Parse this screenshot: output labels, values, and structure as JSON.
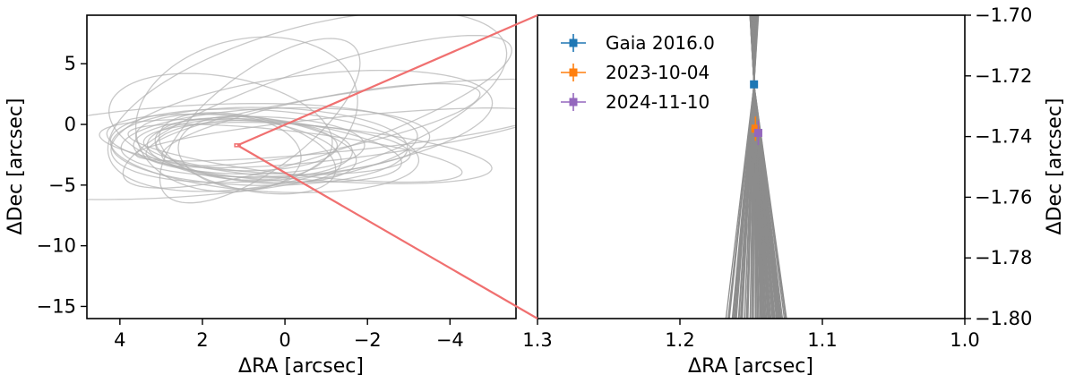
{
  "chart_data": [
    {
      "type": "line",
      "panel": "left",
      "xlabel": "ΔRA [arcsec]",
      "ylabel": "ΔDec [arcsec]",
      "xlim": [
        4.8,
        -5.6
      ],
      "ylim": [
        -16,
        9
      ],
      "xticks": [
        4,
        2,
        0,
        -2,
        -4
      ],
      "yticks": [
        5,
        0,
        -5,
        -10,
        -15
      ],
      "grid": false,
      "orbit_color": "#b0b0b0",
      "orbit_center": [
        1.15,
        -1.72
      ],
      "orbits": [
        {
          "theta_deg": 160,
          "a": 6.0,
          "e": 0.25,
          "inc_scale": 0.62
        },
        {
          "theta_deg": 20,
          "a": 5.0,
          "e": 0.3,
          "inc_scale": 0.45
        },
        {
          "theta_deg": 35,
          "a": 4.0,
          "e": 0.2,
          "inc_scale": 0.8
        },
        {
          "theta_deg": 10,
          "a": 3.6,
          "e": 0.15,
          "inc_scale": 0.9
        },
        {
          "theta_deg": -30,
          "a": 6.0,
          "e": 0.6,
          "inc_scale": 0.5
        },
        {
          "theta_deg": -55,
          "a": 7.5,
          "e": 0.45,
          "inc_scale": 0.35
        },
        {
          "theta_deg": -65,
          "a": 8.0,
          "e": 0.5,
          "inc_scale": 0.55
        },
        {
          "theta_deg": -45,
          "a": 5.5,
          "e": 0.4,
          "inc_scale": 0.7
        },
        {
          "theta_deg": -75,
          "a": 7.0,
          "e": 0.3,
          "inc_scale": 0.25
        },
        {
          "theta_deg": -105,
          "a": 4.5,
          "e": 0.35,
          "inc_scale": 0.6
        },
        {
          "theta_deg": 50,
          "a": 3.2,
          "e": 0.1,
          "inc_scale": 0.7
        },
        {
          "theta_deg": 70,
          "a": 3.5,
          "e": 0.2,
          "inc_scale": 0.55
        },
        {
          "theta_deg": 0,
          "a": 2.8,
          "e": 0.1,
          "inc_scale": 0.85
        },
        {
          "theta_deg": 25,
          "a": 4.4,
          "e": 0.35,
          "inc_scale": 0.4
        },
        {
          "theta_deg": -15,
          "a": 3.8,
          "e": 0.25,
          "inc_scale": 0.75
        },
        {
          "theta_deg": 40,
          "a": 2.6,
          "e": 0.15,
          "inc_scale": 0.9
        },
        {
          "theta_deg": 85,
          "a": 3.0,
          "e": 0.2,
          "inc_scale": 0.5
        },
        {
          "theta_deg": 15,
          "a": 3.3,
          "e": 0.3,
          "inc_scale": 0.65
        },
        {
          "theta_deg": -40,
          "a": 4.8,
          "e": 0.55,
          "inc_scale": 0.45
        },
        {
          "theta_deg": 5,
          "a": 2.2,
          "e": 0.1,
          "inc_scale": 0.95
        },
        {
          "theta_deg": 30,
          "a": 3.9,
          "e": 0.12,
          "inc_scale": 0.6
        },
        {
          "theta_deg": -20,
          "a": 5.2,
          "e": 0.5,
          "inc_scale": 0.3
        },
        {
          "theta_deg": 60,
          "a": 2.9,
          "e": 0.18,
          "inc_scale": 0.7
        },
        {
          "theta_deg": -85,
          "a": 6.4,
          "e": 0.4,
          "inc_scale": 0.45
        }
      ]
    },
    {
      "type": "scatter",
      "panel": "right",
      "xlabel": "ΔRA [arcsec]",
      "ylabel": "ΔDec [arcsec]",
      "xlim": [
        1.3,
        1.0
      ],
      "ylim": [
        -1.8,
        -1.7
      ],
      "xticks": [
        "1.3",
        "1.2",
        "1.1",
        "1.0"
      ],
      "yticks": [
        "−1.70",
        "−1.72",
        "−1.74",
        "−1.76",
        "−1.78",
        "−1.80"
      ],
      "grid": false,
      "legend_position": "top-left",
      "line_color": "#8c8c8c",
      "pinch_point": [
        1.148,
        -1.7228
      ],
      "series": [
        {
          "name": "Gaia 2016.0",
          "color": "#1f77b4",
          "x": 1.148,
          "y": -1.7228,
          "xerr": 0.001,
          "yerr": 0.0005
        },
        {
          "name": "2023-10-04",
          "color": "#ff7f0e",
          "x": 1.147,
          "y": -1.7374,
          "xerr": 0.003,
          "yerr": 0.004
        },
        {
          "name": "2024-11-10",
          "color": "#9467bd",
          "x": 1.145,
          "y": -1.7388,
          "xerr": 0.002,
          "yerr": 0.004
        }
      ]
    }
  ]
}
